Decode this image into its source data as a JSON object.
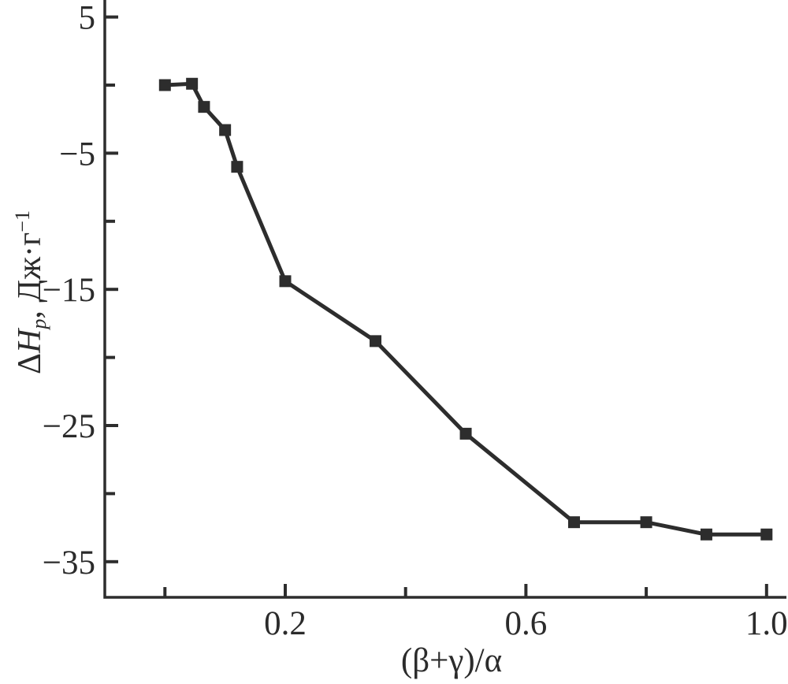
{
  "figure": {
    "background": "#ffffff"
  },
  "colors": {
    "stroke": "#2d2d2d",
    "text": "#2b2b2b"
  },
  "chart_data": {
    "type": "line",
    "title": "",
    "grid": false,
    "legend": null,
    "series": [
      {
        "name": "delta-H-p-curve",
        "marker": "square",
        "color": "#2d2d2d",
        "points": [
          {
            "x": 0.0,
            "y": 0.0
          },
          {
            "x": 0.045,
            "y": 0.1
          },
          {
            "x": 0.065,
            "y": -1.6
          },
          {
            "x": 0.1,
            "y": -3.3
          },
          {
            "x": 0.12,
            "y": -6.0
          },
          {
            "x": 0.2,
            "y": -14.4
          },
          {
            "x": 0.35,
            "y": -18.8
          },
          {
            "x": 0.5,
            "y": -25.6
          },
          {
            "x": 0.68,
            "y": -32.1
          },
          {
            "x": 0.8,
            "y": -32.1
          },
          {
            "x": 0.9,
            "y": -33.0
          },
          {
            "x": 1.0,
            "y": -33.0
          }
        ]
      }
    ],
    "x_axis": {
      "label": "(β+γ)/α",
      "range": [
        -0.1,
        1.03
      ],
      "ticks": [
        0.0,
        0.2,
        0.4,
        0.6,
        0.8,
        1.0
      ],
      "tick_labels": [
        {
          "value": 0.2,
          "text": "0.2"
        },
        {
          "value": 0.6,
          "text": "0.6"
        },
        {
          "value": 1.0,
          "text": "1.0"
        }
      ]
    },
    "y_axis": {
      "label_plain": "ΔHp, Дж·г−1",
      "label_parts": {
        "delta": "Δ",
        "symbol": "H",
        "subscript": "p",
        "separator": ", ",
        "unit": "Дж·г",
        "exponent": "−1"
      },
      "range": [
        -37.6,
        6.25
      ],
      "ticks": [
        5,
        0,
        -5,
        -10,
        -15,
        -20,
        -25,
        -30,
        -35
      ],
      "tick_labels": [
        {
          "value": 5,
          "text": "5"
        },
        {
          "value": -5,
          "text": "−5"
        },
        {
          "value": -15,
          "text": "−15"
        },
        {
          "value": -25,
          "text": "−25"
        },
        {
          "value": -35,
          "text": "−35"
        }
      ]
    }
  }
}
